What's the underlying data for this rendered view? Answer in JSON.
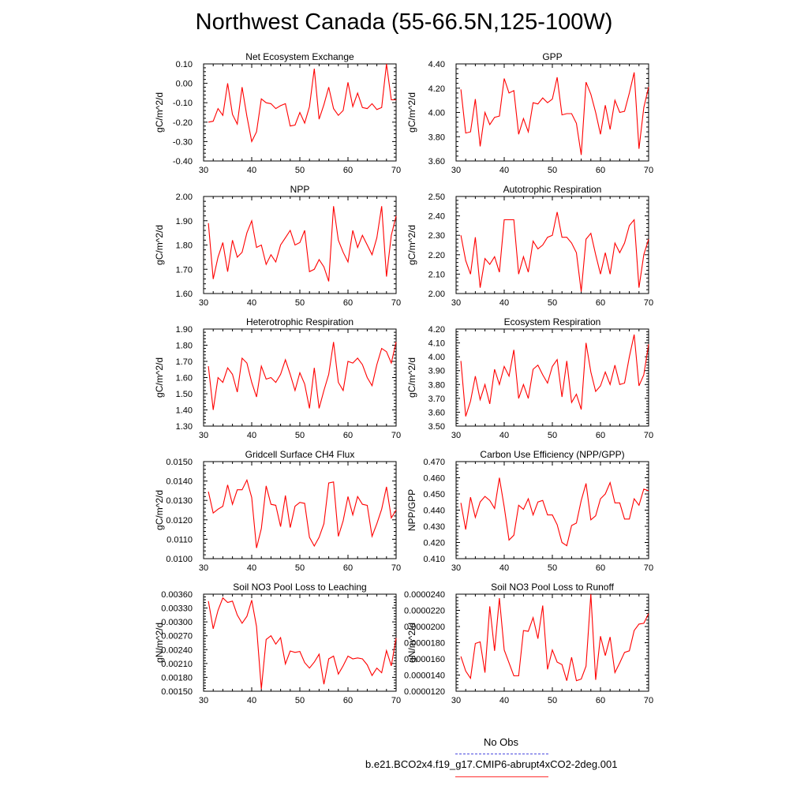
{
  "title": "Northwest Canada (55-66.5N,125-100W)",
  "colors": {
    "series": "#ff0000",
    "obs": "#4a4adf",
    "axes": "#000000"
  },
  "legend": {
    "obs_label": "No Obs",
    "case_label": "b.e21.BCO2x4.f19_g17.CMIP6-abrupt4xCO2-2deg.001"
  },
  "chart_data": [
    {
      "type": "line",
      "title": "Net Ecosystem Exchange",
      "xlabel": "",
      "ylabel": "gC/m^2/d",
      "xlim": [
        30,
        70
      ],
      "ylim": [
        -0.4,
        0.1
      ],
      "xticks": [
        "30",
        "40",
        "50",
        "60",
        "70"
      ],
      "yticks": [
        "-0.40",
        "-0.30",
        "-0.20",
        "-0.10",
        "0.00",
        "0.10"
      ],
      "x": [
        31,
        32,
        33,
        34,
        35,
        36,
        37,
        38,
        39,
        40,
        41,
        42,
        43,
        44,
        45,
        46,
        47,
        48,
        49,
        50,
        51,
        52,
        53,
        54,
        55,
        56,
        57,
        58,
        59,
        60,
        61,
        62,
        63,
        64,
        65,
        66,
        67,
        68,
        69,
        70
      ],
      "values": [
        -0.2,
        -0.195,
        -0.13,
        -0.165,
        0.0,
        -0.16,
        -0.21,
        -0.02,
        -0.17,
        -0.3,
        -0.25,
        -0.08,
        -0.1,
        -0.105,
        -0.13,
        -0.115,
        -0.105,
        -0.22,
        -0.215,
        -0.15,
        -0.205,
        -0.12,
        0.075,
        -0.185,
        -0.11,
        -0.02,
        -0.13,
        -0.165,
        -0.14,
        0.005,
        -0.12,
        -0.05,
        -0.125,
        -0.13,
        -0.105,
        -0.135,
        -0.125,
        0.1,
        -0.085,
        -0.085
      ]
    },
    {
      "type": "line",
      "title": "GPP",
      "xlabel": "",
      "ylabel": "gC/m^2/d",
      "xlim": [
        30,
        70
      ],
      "ylim": [
        3.6,
        4.4
      ],
      "xticks": [
        "30",
        "40",
        "50",
        "60",
        "70"
      ],
      "yticks": [
        "3.60",
        "3.80",
        "4.00",
        "4.20",
        "4.40"
      ],
      "x": [
        31,
        32,
        33,
        34,
        35,
        36,
        37,
        38,
        39,
        40,
        41,
        42,
        43,
        44,
        45,
        46,
        47,
        48,
        49,
        50,
        51,
        52,
        53,
        54,
        55,
        56,
        57,
        58,
        59,
        60,
        61,
        62,
        63,
        64,
        65,
        66,
        67,
        68,
        69,
        70
      ],
      "values": [
        4.19,
        3.83,
        3.84,
        4.11,
        3.72,
        4.0,
        3.9,
        3.96,
        3.97,
        4.28,
        4.16,
        4.18,
        3.82,
        3.95,
        3.84,
        4.08,
        4.07,
        4.12,
        4.08,
        4.11,
        4.29,
        3.98,
        3.99,
        3.99,
        3.91,
        3.65,
        4.25,
        4.15,
        4.0,
        3.82,
        4.06,
        3.86,
        4.1,
        4.0,
        4.01,
        4.16,
        4.33,
        3.7,
        4.04,
        4.21
      ]
    },
    {
      "type": "line",
      "title": "NPP",
      "xlabel": "",
      "ylabel": "gC/m^2/d",
      "xlim": [
        30,
        70
      ],
      "ylim": [
        1.6,
        2.0
      ],
      "xticks": [
        "30",
        "40",
        "50",
        "60",
        "70"
      ],
      "yticks": [
        "1.60",
        "1.70",
        "1.80",
        "1.90",
        "2.00"
      ],
      "x": [
        31,
        32,
        33,
        34,
        35,
        36,
        37,
        38,
        39,
        40,
        41,
        42,
        43,
        44,
        45,
        46,
        47,
        48,
        49,
        50,
        51,
        52,
        53,
        54,
        55,
        56,
        57,
        58,
        59,
        60,
        61,
        62,
        63,
        64,
        65,
        66,
        67,
        68,
        69,
        70
      ],
      "values": [
        1.89,
        1.66,
        1.75,
        1.81,
        1.69,
        1.82,
        1.75,
        1.77,
        1.85,
        1.9,
        1.79,
        1.8,
        1.72,
        1.76,
        1.73,
        1.8,
        1.83,
        1.86,
        1.8,
        1.81,
        1.86,
        1.69,
        1.7,
        1.74,
        1.71,
        1.65,
        1.96,
        1.82,
        1.77,
        1.73,
        1.86,
        1.79,
        1.84,
        1.8,
        1.76,
        1.83,
        1.96,
        1.67,
        1.84,
        1.92
      ]
    },
    {
      "type": "line",
      "title": "Autotrophic Respiration",
      "xlabel": "",
      "ylabel": "gC/m^2/d",
      "xlim": [
        30,
        70
      ],
      "ylim": [
        2.0,
        2.5
      ],
      "xticks": [
        "30",
        "40",
        "50",
        "60",
        "70"
      ],
      "yticks": [
        "2.00",
        "2.10",
        "2.20",
        "2.30",
        "2.40",
        "2.50"
      ],
      "x": [
        31,
        32,
        33,
        34,
        35,
        36,
        37,
        38,
        39,
        40,
        41,
        42,
        43,
        44,
        45,
        46,
        47,
        48,
        49,
        50,
        51,
        52,
        53,
        54,
        55,
        56,
        57,
        58,
        59,
        60,
        61,
        62,
        63,
        64,
        65,
        66,
        67,
        68,
        69,
        70
      ],
      "values": [
        2.3,
        2.17,
        2.1,
        2.29,
        2.03,
        2.18,
        2.15,
        2.19,
        2.11,
        2.38,
        2.38,
        2.38,
        2.1,
        2.19,
        2.11,
        2.27,
        2.23,
        2.25,
        2.29,
        2.3,
        2.42,
        2.29,
        2.29,
        2.26,
        2.21,
        2.01,
        2.28,
        2.31,
        2.2,
        2.1,
        2.21,
        2.1,
        2.26,
        2.21,
        2.26,
        2.35,
        2.38,
        2.03,
        2.2,
        2.28
      ]
    },
    {
      "type": "line",
      "title": "Heterotrophic Respiration",
      "xlabel": "",
      "ylabel": "gC/m^2/d",
      "xlim": [
        30,
        70
      ],
      "ylim": [
        1.3,
        1.9
      ],
      "xticks": [
        "30",
        "40",
        "50",
        "60",
        "70"
      ],
      "yticks": [
        "1.30",
        "1.40",
        "1.50",
        "1.60",
        "1.70",
        "1.80",
        "1.90"
      ],
      "x": [
        31,
        32,
        33,
        34,
        35,
        36,
        37,
        38,
        39,
        40,
        41,
        42,
        43,
        44,
        45,
        46,
        47,
        48,
        49,
        50,
        51,
        52,
        53,
        54,
        55,
        56,
        57,
        58,
        59,
        60,
        61,
        62,
        63,
        64,
        65,
        66,
        67,
        68,
        69,
        70
      ],
      "values": [
        1.67,
        1.4,
        1.6,
        1.57,
        1.66,
        1.62,
        1.51,
        1.72,
        1.69,
        1.57,
        1.48,
        1.67,
        1.59,
        1.6,
        1.57,
        1.62,
        1.71,
        1.62,
        1.52,
        1.63,
        1.56,
        1.41,
        1.66,
        1.41,
        1.52,
        1.62,
        1.82,
        1.57,
        1.52,
        1.7,
        1.69,
        1.72,
        1.68,
        1.6,
        1.55,
        1.68,
        1.78,
        1.76,
        1.69,
        1.82
      ]
    },
    {
      "type": "line",
      "title": "Ecosystem Respiration",
      "xlabel": "",
      "ylabel": "gC/m^2/d",
      "xlim": [
        30,
        70
      ],
      "ylim": [
        3.5,
        4.2
      ],
      "xticks": [
        "30",
        "40",
        "50",
        "60",
        "70"
      ],
      "yticks": [
        "3.50",
        "3.60",
        "3.70",
        "3.80",
        "3.90",
        "4.00",
        "4.10",
        "4.20"
      ],
      "x": [
        31,
        32,
        33,
        34,
        35,
        36,
        37,
        38,
        39,
        40,
        41,
        42,
        43,
        44,
        45,
        46,
        47,
        48,
        49,
        50,
        51,
        52,
        53,
        54,
        55,
        56,
        57,
        58,
        59,
        60,
        61,
        62,
        63,
        64,
        65,
        66,
        67,
        68,
        69,
        70
      ],
      "values": [
        3.97,
        3.57,
        3.68,
        3.86,
        3.69,
        3.8,
        3.66,
        3.91,
        3.8,
        3.93,
        3.86,
        4.05,
        3.7,
        3.8,
        3.7,
        3.91,
        3.94,
        3.87,
        3.81,
        3.93,
        3.98,
        3.71,
        3.97,
        3.67,
        3.73,
        3.62,
        4.1,
        3.89,
        3.75,
        3.79,
        3.89,
        3.8,
        3.94,
        3.8,
        3.81,
        4.0,
        4.16,
        3.79,
        3.87,
        4.09
      ]
    },
    {
      "type": "line",
      "title": "Gridcell Surface CH4 Flux",
      "xlabel": "",
      "ylabel": "gC/m^2/d",
      "xlim": [
        30,
        70
      ],
      "ylim": [
        0.01,
        0.015
      ],
      "xticks": [
        "30",
        "40",
        "50",
        "60",
        "70"
      ],
      "yticks": [
        "0.0100",
        "0.0110",
        "0.0120",
        "0.0130",
        "0.0140",
        "0.0150"
      ],
      "x": [
        31,
        32,
        33,
        34,
        35,
        36,
        37,
        38,
        39,
        40,
        41,
        42,
        43,
        44,
        45,
        46,
        47,
        48,
        49,
        50,
        51,
        52,
        53,
        54,
        55,
        56,
        57,
        58,
        59,
        60,
        61,
        62,
        63,
        64,
        65,
        66,
        67,
        68,
        69,
        70
      ],
      "values": [
        0.01345,
        0.01235,
        0.01255,
        0.0127,
        0.0138,
        0.0128,
        0.01355,
        0.01355,
        0.01405,
        0.01315,
        0.01055,
        0.01155,
        0.01375,
        0.0128,
        0.01275,
        0.01165,
        0.01325,
        0.0116,
        0.0127,
        0.0129,
        0.01285,
        0.0111,
        0.01065,
        0.0111,
        0.0118,
        0.0139,
        0.01395,
        0.01115,
        0.01195,
        0.0132,
        0.01225,
        0.0132,
        0.0128,
        0.01275,
        0.01115,
        0.0118,
        0.01255,
        0.0137,
        0.0121,
        0.0125
      ]
    },
    {
      "type": "line",
      "title": "Carbon Use Efficiency (NPP/GPP)",
      "xlabel": "",
      "ylabel": "NPP/GPP",
      "xlim": [
        30,
        70
      ],
      "ylim": [
        0.41,
        0.47
      ],
      "xticks": [
        "30",
        "40",
        "50",
        "60",
        "70"
      ],
      "yticks": [
        "0.410",
        "0.420",
        "0.430",
        "0.440",
        "0.450",
        "0.460",
        "0.470"
      ],
      "x": [
        31,
        32,
        33,
        34,
        35,
        36,
        37,
        38,
        39,
        40,
        41,
        42,
        43,
        44,
        45,
        46,
        47,
        48,
        49,
        50,
        51,
        52,
        53,
        54,
        55,
        56,
        57,
        58,
        59,
        60,
        61,
        62,
        63,
        64,
        65,
        66,
        67,
        68,
        69,
        70
      ],
      "values": [
        0.4445,
        0.428,
        0.448,
        0.4355,
        0.445,
        0.4485,
        0.446,
        0.441,
        0.46,
        0.442,
        0.4215,
        0.4245,
        0.443,
        0.4405,
        0.447,
        0.437,
        0.445,
        0.446,
        0.437,
        0.437,
        0.431,
        0.42,
        0.418,
        0.4305,
        0.432,
        0.446,
        0.4565,
        0.434,
        0.4365,
        0.447,
        0.45,
        0.457,
        0.4445,
        0.4445,
        0.4345,
        0.4345,
        0.447,
        0.443,
        0.453,
        0.452
      ]
    },
    {
      "type": "line",
      "title": "Soil NO3 Pool Loss to Leaching",
      "xlabel": "",
      "ylabel": "gN/m^2/d",
      "xlim": [
        30,
        70
      ],
      "ylim": [
        0.0015,
        0.0036
      ],
      "xticks": [
        "30",
        "40",
        "50",
        "60",
        "70"
      ],
      "yticks": [
        "0.00150",
        "0.00180",
        "0.00210",
        "0.00240",
        "0.00270",
        "0.00300",
        "0.00330",
        "0.00360"
      ],
      "x": [
        31,
        32,
        33,
        34,
        35,
        36,
        37,
        38,
        39,
        40,
        41,
        42,
        43,
        44,
        45,
        46,
        47,
        48,
        49,
        50,
        51,
        52,
        53,
        54,
        55,
        56,
        57,
        58,
        59,
        60,
        61,
        62,
        63,
        64,
        65,
        66,
        67,
        68,
        69,
        70
      ],
      "values": [
        0.00345,
        0.00285,
        0.00325,
        0.00352,
        0.00342,
        0.00345,
        0.00315,
        0.00297,
        0.00312,
        0.00347,
        0.0029,
        0.00155,
        0.00262,
        0.0027,
        0.00252,
        0.00266,
        0.00209,
        0.00237,
        0.00234,
        0.00236,
        0.00212,
        0.002,
        0.00213,
        0.0023,
        0.00165,
        0.0022,
        0.00226,
        0.00187,
        0.00205,
        0.00226,
        0.0022,
        0.00222,
        0.0022,
        0.00207,
        0.00184,
        0.002,
        0.0019,
        0.00238,
        0.00205,
        0.00265
      ]
    },
    {
      "type": "line",
      "title": "Soil NO3 Pool Loss to Runoff",
      "xlabel": "",
      "ylabel": "gN/m^2/d",
      "xlim": [
        30,
        70
      ],
      "ylim": [
        1.2e-05,
        2.4e-05
      ],
      "xticks": [
        "30",
        "40",
        "50",
        "60",
        "70"
      ],
      "yticks": [
        "0.0000120",
        "0.0000140",
        "0.0000160",
        "0.0000180",
        "0.0000200",
        "0.0000220",
        "0.0000240"
      ],
      "x": [
        31,
        32,
        33,
        34,
        35,
        36,
        37,
        38,
        39,
        40,
        41,
        42,
        43,
        44,
        45,
        46,
        47,
        48,
        49,
        50,
        51,
        52,
        53,
        54,
        55,
        56,
        57,
        58,
        59,
        60,
        61,
        62,
        63,
        64,
        65,
        66,
        67,
        68,
        69,
        70
      ],
      "values": [
        1.63e-05,
        1.45e-05,
        1.36e-05,
        1.79e-05,
        1.81e-05,
        1.43e-05,
        2.25e-05,
        1.7e-05,
        2.35e-05,
        1.71e-05,
        1.55e-05,
        1.39e-05,
        1.39e-05,
        1.95e-05,
        1.94e-05,
        2.11e-05,
        1.85e-05,
        2.26e-05,
        1.47e-05,
        1.71e-05,
        1.56e-05,
        1.53e-05,
        1.33e-05,
        1.62e-05,
        1.33e-05,
        1.35e-05,
        1.51e-05,
        2.4e-05,
        1.34e-05,
        1.88e-05,
        1.64e-05,
        1.87e-05,
        1.43e-05,
        1.55e-05,
        1.68e-05,
        1.7e-05,
        1.95e-05,
        2.03e-05,
        2.04e-05,
        2.16e-05
      ]
    }
  ]
}
